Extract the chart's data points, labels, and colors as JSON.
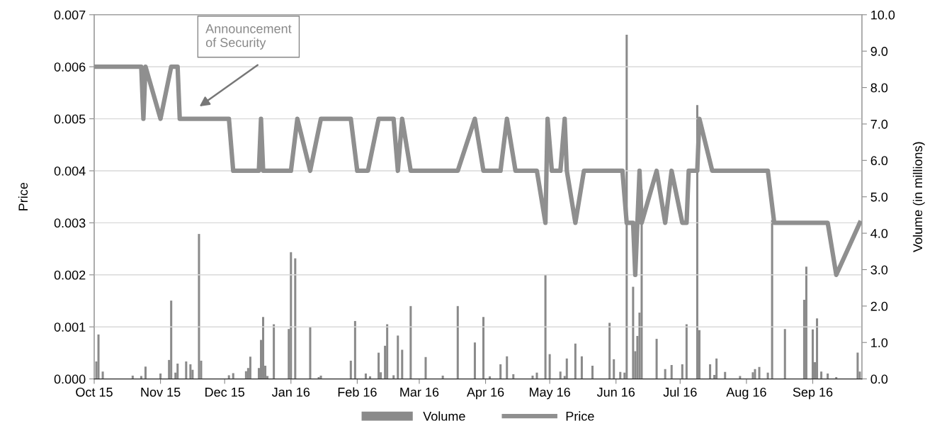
{
  "chart_data": {
    "type": "line",
    "ylabel": "Price",
    "y2label": "Volume (in millions)",
    "xlim": [
      "2015-10-01",
      "2016-09-24"
    ],
    "xticks": [
      {
        "value": "2015-10-01",
        "label": "Oct 15"
      },
      {
        "value": "2015-11-01",
        "label": "Nov 15"
      },
      {
        "value": "2015-12-01",
        "label": "Dec 15"
      },
      {
        "value": "2016-01-01",
        "label": "Jan 16"
      },
      {
        "value": "2016-02-01",
        "label": "Feb 16"
      },
      {
        "value": "2016-03-01",
        "label": "Mar 16"
      },
      {
        "value": "2016-04-01",
        "label": "Apr 16"
      },
      {
        "value": "2016-05-01",
        "label": "May 16"
      },
      {
        "value": "2016-06-01",
        "label": "Jun 16"
      },
      {
        "value": "2016-07-01",
        "label": "Jul 16"
      },
      {
        "value": "2016-08-01",
        "label": "Aug 16"
      },
      {
        "value": "2016-09-01",
        "label": "Sep 16"
      }
    ],
    "ylim": [
      0,
      0.007
    ],
    "yticks": [
      {
        "value": 0,
        "label": "0.000"
      },
      {
        "value": 0.001,
        "label": "0.001"
      },
      {
        "value": 0.002,
        "label": "0.002"
      },
      {
        "value": 0.003,
        "label": "0.003"
      },
      {
        "value": 0.004,
        "label": "0.004"
      },
      {
        "value": 0.005,
        "label": "0.005"
      },
      {
        "value": 0.006,
        "label": "0.006"
      },
      {
        "value": 0.007,
        "label": "0.007"
      }
    ],
    "y2lim": [
      0,
      10
    ],
    "y2ticks": [
      {
        "value": 0,
        "label": "0.0"
      },
      {
        "value": 1,
        "label": "1.0"
      },
      {
        "value": 2,
        "label": "2.0"
      },
      {
        "value": 3,
        "label": "3.0"
      },
      {
        "value": 4,
        "label": "4.0"
      },
      {
        "value": 5,
        "label": "5.0"
      },
      {
        "value": 6,
        "label": "6.0"
      },
      {
        "value": 7,
        "label": "7.0"
      },
      {
        "value": 8,
        "label": "8.0"
      },
      {
        "value": 9,
        "label": "9.0"
      },
      {
        "value": 10,
        "label": "10.0"
      }
    ],
    "grid": "y",
    "legend": "bottom",
    "marker": "none",
    "line_style": "solid",
    "annotations": [
      "Announcement\nof Security"
    ],
    "series": [
      {
        "name": "Volume",
        "type": "bar",
        "axis": "y2",
        "color": "#8a8a8a",
        "x": [
          "2015-10-02",
          "2015-10-03",
          "2015-10-05",
          "2015-10-19",
          "2015-10-23",
          "2015-10-25",
          "2015-11-01",
          "2015-11-05",
          "2015-11-06",
          "2015-11-08",
          "2015-11-09",
          "2015-11-13",
          "2015-11-15",
          "2015-11-16",
          "2015-11-19",
          "2015-11-20",
          "2015-12-03",
          "2015-12-05",
          "2015-12-11",
          "2015-12-12",
          "2015-12-13",
          "2015-12-17",
          "2015-12-18",
          "2015-12-19",
          "2015-12-20",
          "2015-12-21",
          "2015-12-24",
          "2015-12-31",
          "2016-01-01",
          "2016-01-03",
          "2016-01-10",
          "2016-01-14",
          "2016-01-15",
          "2016-01-29",
          "2016-01-31",
          "2016-02-05",
          "2016-02-07",
          "2016-02-11",
          "2016-02-12",
          "2016-02-14",
          "2016-02-15",
          "2016-02-18",
          "2016-02-20",
          "2016-02-22",
          "2016-02-26",
          "2016-03-04",
          "2016-03-12",
          "2016-03-19",
          "2016-03-27",
          "2016-03-31",
          "2016-04-03",
          "2016-04-08",
          "2016-04-11",
          "2016-04-14",
          "2016-04-23",
          "2016-04-25",
          "2016-04-29",
          "2016-05-01",
          "2016-05-02",
          "2016-05-06",
          "2016-05-08",
          "2016-05-09",
          "2016-05-13",
          "2016-05-16",
          "2016-05-21",
          "2016-05-29",
          "2016-05-31",
          "2016-06-03",
          "2016-06-05",
          "2016-06-06",
          "2016-06-09",
          "2016-06-10",
          "2016-06-11",
          "2016-06-12",
          "2016-06-13",
          "2016-06-20",
          "2016-06-24",
          "2016-06-27",
          "2016-07-02",
          "2016-07-04",
          "2016-07-09",
          "2016-07-10",
          "2016-07-15",
          "2016-07-17",
          "2016-07-18",
          "2016-07-22",
          "2016-07-29",
          "2016-08-04",
          "2016-08-05",
          "2016-08-07",
          "2016-08-11",
          "2016-08-13",
          "2016-08-19",
          "2016-08-20",
          "2016-08-28",
          "2016-08-29",
          "2016-09-01",
          "2016-09-02",
          "2016-09-03",
          "2016-09-05",
          "2016-09-08",
          "2016-09-12",
          "2016-09-22",
          "2016-09-23"
        ],
        "values": [
          0.48,
          1.22,
          0.2,
          0.09,
          0.08,
          0.34,
          0.15,
          0.52,
          2.15,
          0.17,
          0.42,
          0.48,
          0.4,
          0.25,
          3.98,
          0.5,
          0.1,
          0.16,
          0.21,
          0.3,
          0.61,
          0.3,
          1.07,
          1.7,
          0.36,
          0.08,
          1.5,
          1.37,
          3.48,
          3.31,
          1.42,
          0.05,
          0.09,
          0.5,
          1.59,
          0.15,
          0.07,
          0.72,
          0.18,
          0.91,
          1.5,
          0.1,
          1.19,
          0.8,
          2.0,
          0.6,
          0.09,
          2.0,
          1.0,
          1.7,
          0.07,
          0.4,
          0.62,
          0.13,
          0.09,
          0.17,
          2.86,
          0.68,
          null,
          0.2,
          0.08,
          0.56,
          0.97,
          0.62,
          0.36,
          1.54,
          0.54,
          0.19,
          0.17,
          9.45,
          2.53,
          0.76,
          1.18,
          1.82,
          5.2,
          1.1,
          0.27,
          0.38,
          0.4,
          1.5,
          7.52,
          1.34,
          0.4,
          0.11,
          0.56,
          0.19,
          0.08,
          0.18,
          0.27,
          0.33,
          0.17,
          4.36,
          1.37,
          null,
          2.17,
          3.08,
          1.36,
          0.46,
          1.66,
          0.2,
          0.15,
          0.05,
          0.72,
          0.2
        ]
      },
      {
        "name": "Price",
        "axis": "y",
        "color": "#8f8f8f",
        "x": [
          "2015-10-01",
          "2015-10-23",
          "2015-10-24",
          "2015-10-25",
          "2015-11-01",
          "2015-11-06",
          "2015-11-09",
          "2015-11-10",
          "2015-12-03",
          "2015-12-05",
          "2015-12-17",
          "2015-12-18",
          "2015-12-19",
          "2016-01-01",
          "2016-01-04",
          "2016-01-10",
          "2016-01-15",
          "2016-01-29",
          "2016-02-01",
          "2016-02-06",
          "2016-02-11",
          "2016-02-18",
          "2016-02-20",
          "2016-02-22",
          "2016-02-26",
          "2016-03-19",
          "2016-03-27",
          "2016-03-31",
          "2016-04-08",
          "2016-04-11",
          "2016-04-15",
          "2016-04-25",
          "2016-04-29",
          "2016-04-30",
          "2016-05-02",
          "2016-05-06",
          "2016-05-08",
          "2016-05-09",
          "2016-05-13",
          "2016-05-17",
          "2016-06-04",
          "2016-06-06",
          "2016-06-09",
          "2016-06-10",
          "2016-06-12",
          "2016-06-13",
          "2016-06-20",
          "2016-06-24",
          "2016-06-27",
          "2016-07-02",
          "2016-07-04",
          "2016-07-05",
          "2016-07-09",
          "2016-07-10",
          "2016-07-16",
          "2016-08-11",
          "2016-08-14",
          "2016-09-08",
          "2016-09-12",
          "2016-09-23"
        ],
        "values": [
          0.006,
          0.006,
          0.005,
          0.006,
          0.005,
          0.006,
          0.006,
          0.005,
          0.005,
          0.004,
          0.004,
          0.005,
          0.004,
          0.004,
          0.005,
          0.004,
          0.005,
          0.005,
          0.004,
          0.004,
          0.005,
          0.005,
          0.004,
          0.005,
          0.004,
          0.004,
          0.005,
          0.004,
          0.004,
          0.005,
          0.004,
          0.004,
          0.003,
          0.005,
          0.004,
          0.004,
          0.005,
          0.004,
          0.003,
          0.004,
          0.004,
          0.003,
          0.003,
          0.002,
          0.004,
          0.003,
          0.004,
          0.003,
          0.004,
          0.003,
          0.003,
          0.004,
          0.004,
          0.005,
          0.004,
          0.004,
          0.003,
          0.003,
          0.002,
          0.003
        ]
      }
    ]
  }
}
